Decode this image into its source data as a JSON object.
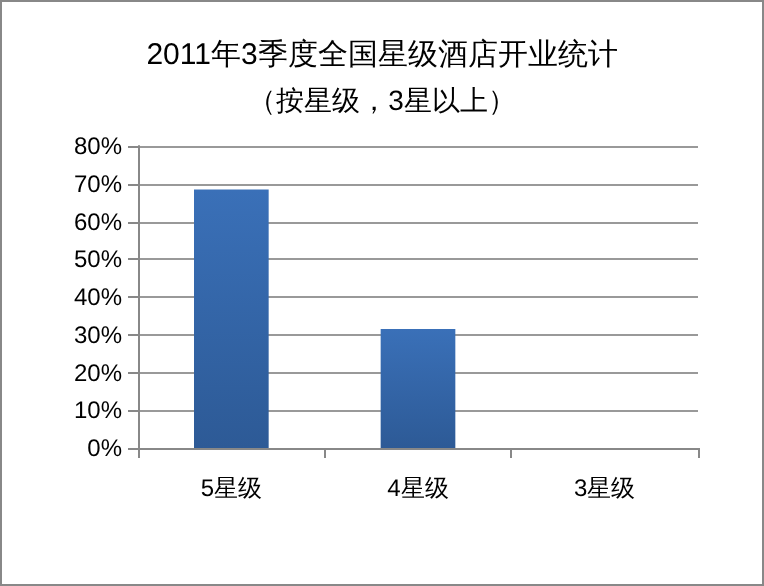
{
  "chart_data": {
    "type": "bar",
    "title": "2011年3季度全国星级酒店开业统计",
    "subtitle": "（按星级，3星以上）",
    "categories": [
      "5星级",
      "4星级",
      "3星级"
    ],
    "values": [
      68.5,
      31.5,
      0
    ],
    "color": "#3a70b8",
    "ylim": [
      0,
      80
    ],
    "yticks": [
      {
        "value": 0,
        "label": "0%"
      },
      {
        "value": 10,
        "label": "10%"
      },
      {
        "value": 20,
        "label": "20%"
      },
      {
        "value": 30,
        "label": "30%"
      },
      {
        "value": 40,
        "label": "40%"
      },
      {
        "value": 50,
        "label": "50%"
      },
      {
        "value": 60,
        "label": "60%"
      },
      {
        "value": 70,
        "label": "70%"
      },
      {
        "value": 80,
        "label": "80%"
      }
    ],
    "grid": true
  }
}
